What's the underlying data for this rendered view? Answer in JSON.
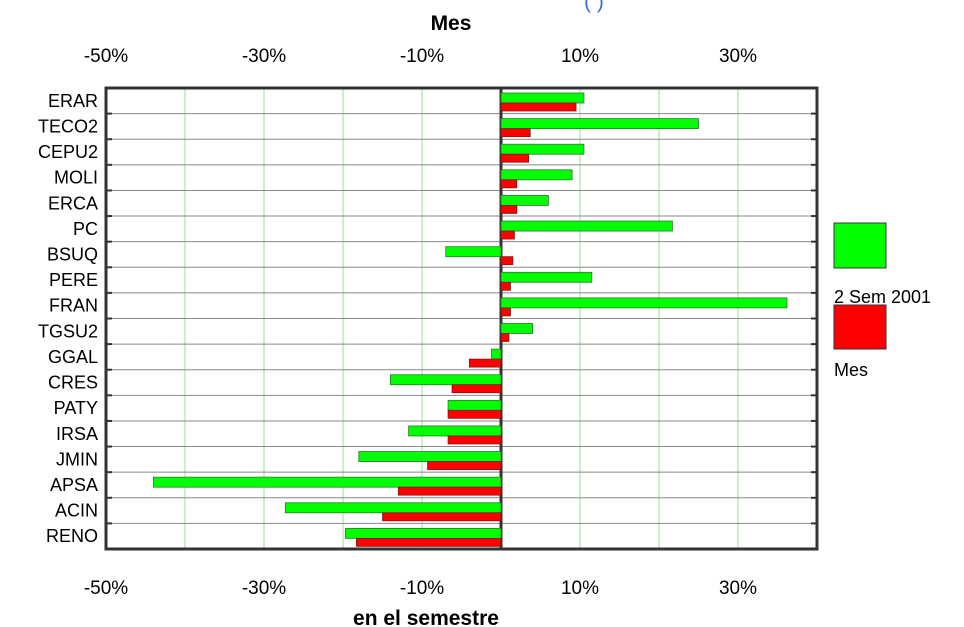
{
  "header_fragment": "(                                        )",
  "chart_data": {
    "type": "bar",
    "orientation": "horizontal",
    "title": "",
    "top_axis_title": "Mes",
    "bottom_axis_title": "en el semestre",
    "tick_labels": [
      "-50%",
      "-30%",
      "-10%",
      "10%",
      "30%"
    ],
    "xlim": [
      -50,
      40
    ],
    "categories": [
      "ERAR",
      "TECO2",
      "CEPU2",
      "MOLI",
      "ERCA",
      "PC",
      "BSUQ",
      "PERE",
      "FRAN",
      "TGSU2",
      "GGAL",
      "CRES",
      "PATY",
      "IRSA",
      "JMIN",
      "APSA",
      "ACIN",
      "RENO"
    ],
    "series": [
      {
        "name": "2 Sem 2001",
        "color": "#00ff00",
        "values": [
          10.5,
          25,
          10.5,
          9,
          6,
          21.7,
          -7,
          11.5,
          36.2,
          4,
          -1.2,
          -14,
          -6.7,
          -11.7,
          -18,
          -44,
          -27.3,
          -19.7
        ]
      },
      {
        "name": "Mes",
        "color": "#ff0000",
        "values": [
          9.5,
          3.7,
          3.5,
          2,
          2,
          1.7,
          1.5,
          1.2,
          1.2,
          1,
          -4,
          -6.2,
          -6.7,
          -6.7,
          -9.3,
          -13,
          -15,
          -18.3
        ]
      }
    ],
    "grid": true,
    "legend_position": "right"
  }
}
